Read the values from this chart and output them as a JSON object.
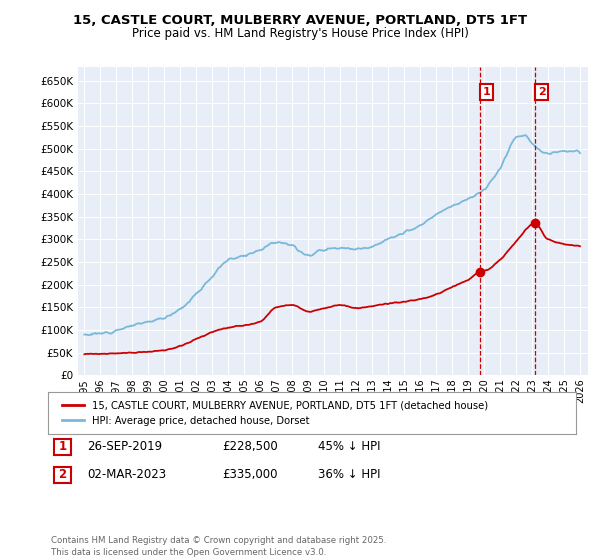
{
  "title": "15, CASTLE COURT, MULBERRY AVENUE, PORTLAND, DT5 1FT",
  "subtitle": "Price paid vs. HM Land Registry's House Price Index (HPI)",
  "legend_line1": "15, CASTLE COURT, MULBERRY AVENUE, PORTLAND, DT5 1FT (detached house)",
  "legend_line2": "HPI: Average price, detached house, Dorset",
  "footnote": "Contains HM Land Registry data © Crown copyright and database right 2025.\nThis data is licensed under the Open Government Licence v3.0.",
  "hpi_color": "#7ab8d9",
  "price_color": "#cc0000",
  "annotation_color": "#cc0000",
  "vline_color": "#cc0000",
  "background_color": "#e8eef8",
  "ylim_max": 680000,
  "ytick_step": 50000,
  "annotation1_year": 2019.73,
  "annotation1_price": 228500,
  "annotation2_year": 2023.17,
  "annotation2_price": 335000,
  "ann1_date": "26-SEP-2019",
  "ann1_price_str": "£228,500",
  "ann1_pct": "45% ↓ HPI",
  "ann2_date": "02-MAR-2023",
  "ann2_price_str": "£335,000",
  "ann2_pct": "36% ↓ HPI"
}
